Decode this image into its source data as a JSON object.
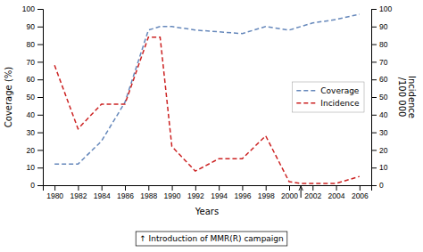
{
  "chart_data": {
    "type": "line",
    "xlabel": "Years",
    "ylabel": "Coverage (%)",
    "y2label": "Incidence\n/100 000",
    "x": [
      1980,
      1982,
      1984,
      1986,
      1988,
      1989,
      1990,
      1992,
      1994,
      1996,
      1998,
      2000,
      2001,
      2002,
      2004,
      2006
    ],
    "series": [
      {
        "name": "Coverage",
        "color": "#6688bb",
        "line_style": "dashed",
        "axis": "y",
        "values": [
          12,
          12,
          25,
          47,
          88,
          90,
          90,
          88,
          87,
          86,
          90,
          88,
          90,
          92,
          94,
          97
        ]
      },
      {
        "name": "Incidence",
        "color": "#cc2222",
        "line_style": "dashed",
        "axis": "y2",
        "values": [
          68,
          32,
          46,
          46,
          84,
          84,
          22,
          8,
          15,
          15,
          28,
          2,
          1,
          1,
          1,
          5
        ]
      }
    ],
    "xlim": [
      1979,
      2007
    ],
    "xticks": [
      1980,
      1982,
      1984,
      1986,
      1988,
      1990,
      1992,
      1994,
      1996,
      1998,
      2000,
      2002,
      2004,
      2006
    ],
    "ylim": [
      0,
      100
    ],
    "yticks": [
      0,
      10,
      20,
      30,
      40,
      50,
      60,
      70,
      80,
      90,
      100
    ],
    "y2lim": [
      0,
      100
    ],
    "y2ticks": [
      0,
      10,
      20,
      30,
      40,
      50,
      60,
      70,
      80,
      90,
      100
    ],
    "grid": false,
    "legend": "right",
    "annotations": [
      {
        "text": "↑ Introduction of MMR(R) campaign",
        "x": 2001
      }
    ]
  }
}
